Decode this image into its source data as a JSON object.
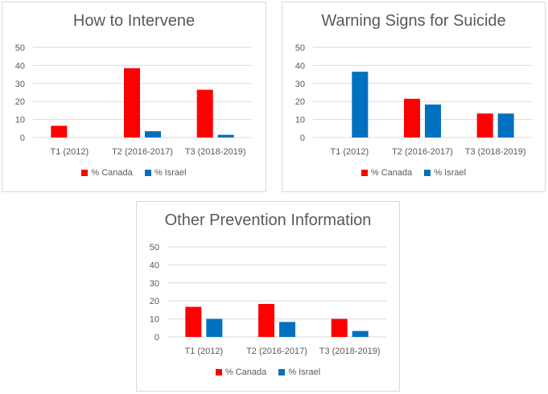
{
  "colors": {
    "canada": "#ff0000",
    "israel": "#0070c0",
    "grid": "#d9d9d9",
    "text": "#595959"
  },
  "chart_data": [
    {
      "type": "bar",
      "title": "How to Intervene",
      "categories": [
        "T1 (2012)",
        "T2 (2016-2017)",
        "T3 (2018-2019)"
      ],
      "series": [
        {
          "name": "% Canada",
          "values": [
            6.5,
            38.5,
            26.5
          ]
        },
        {
          "name": "% Israel",
          "values": [
            0,
            3.5,
            1.5
          ]
        }
      ],
      "yticks": [
        "0",
        "10",
        "20",
        "30",
        "40",
        "50"
      ],
      "ylim": [
        0,
        50
      ],
      "xlabel": "",
      "ylabel": "",
      "legend": "bottom"
    },
    {
      "type": "bar",
      "title": "Warning Signs for Suicide",
      "categories": [
        "T1 (2012)",
        "T2 (2016-2017)",
        "T3 (2018-2019)"
      ],
      "series": [
        {
          "name": "% Canada",
          "values": [
            0,
            21.5,
            13.3
          ]
        },
        {
          "name": "% Israel",
          "values": [
            36.5,
            18.3,
            13.3
          ]
        }
      ],
      "yticks": [
        "0",
        "10",
        "20",
        "30",
        "40",
        "50"
      ],
      "ylim": [
        0,
        50
      ],
      "xlabel": "",
      "ylabel": "",
      "legend": "bottom"
    },
    {
      "type": "bar",
      "title": "Other Prevention Information",
      "categories": [
        "T1 (2012)",
        "T2 (2016-2017)",
        "T3 (2018-2019)"
      ],
      "series": [
        {
          "name": "% Canada",
          "values": [
            16.7,
            18.3,
            10
          ]
        },
        {
          "name": "% Israel",
          "values": [
            10,
            8.3,
            3.3
          ]
        }
      ],
      "yticks": [
        "0",
        "10",
        "20",
        "30",
        "40",
        "50"
      ],
      "ylim": [
        0,
        50
      ],
      "xlabel": "",
      "ylabel": "",
      "legend": "bottom"
    }
  ]
}
